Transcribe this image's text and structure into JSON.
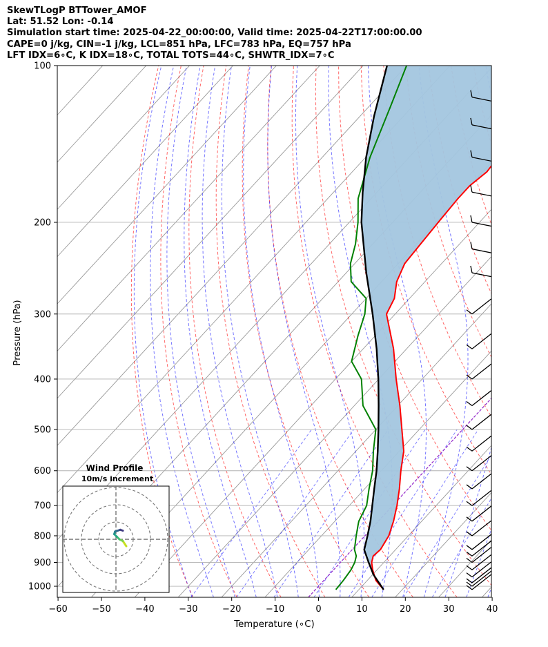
{
  "header": {
    "lines": [
      "SkewTLogP BTTower_AMOF",
      "Lat: 51.52   Lon: -0.14",
      "Simulation start time: 2025-04-22_00:00:00, Valid time: 2025-04-22T17:00:00.00",
      "CAPE=0 j/kg, CIN=-1 j/kg, LCL=851 hPa, LFC=783 hPa, EQ=757 hPa",
      "LFT IDX=6∘C, K IDX=18∘C, TOTAL TOTS=44∘C, SHWTR_IDX=7∘C"
    ]
  },
  "chart_data": {
    "type": "line",
    "subtype": "skew-t log-p",
    "title": "",
    "xlabel": "Temperature (∘C)",
    "ylabel": "Pressure (hPa)",
    "xlim": [
      -60,
      40
    ],
    "ylim": [
      1050,
      100
    ],
    "y_scale": "log",
    "x_ticks": [
      -60,
      -50,
      -40,
      -30,
      -20,
      -10,
      0,
      10,
      20,
      30,
      40
    ],
    "y_ticks": [
      100,
      200,
      300,
      400,
      500,
      600,
      700,
      800,
      900,
      1000
    ],
    "grid": true,
    "colors": {
      "temperature": "#ff0000",
      "dewpoint": "#008000",
      "parcel": "#000000",
      "shading": "#a3c6df",
      "dry_adiabats": "#ff0000",
      "moist_adiabats": "#0000ff",
      "mixing_ratio": "#0000ff",
      "isotherms": "#999999",
      "zero_isotherm": "#9933cc"
    },
    "series": [
      {
        "role": "temperature",
        "points": [
          [
            1015,
            15.7
          ],
          [
            975,
            12.0
          ],
          [
            930,
            9.0
          ],
          [
            900,
            7.2
          ],
          [
            875,
            6.2
          ],
          [
            850,
            6.5
          ],
          [
            800,
            5.5
          ],
          [
            750,
            3.5
          ],
          [
            700,
            1.0
          ],
          [
            650,
            -2.0
          ],
          [
            600,
            -5.5
          ],
          [
            550,
            -9.0
          ],
          [
            500,
            -14.0
          ],
          [
            450,
            -19.5
          ],
          [
            400,
            -26.0
          ],
          [
            350,
            -33.0
          ],
          [
            300,
            -42.0
          ],
          [
            280,
            -43.5
          ],
          [
            260,
            -46.5
          ],
          [
            240,
            -48.5
          ],
          [
            220,
            -49.0
          ],
          [
            200,
            -49.5
          ],
          [
            180,
            -50.0
          ],
          [
            170,
            -50.0
          ],
          [
            160,
            -49.0
          ],
          [
            150,
            -49.5
          ],
          [
            140,
            -50.0
          ],
          [
            130,
            -52.0
          ],
          [
            120,
            -55.0
          ],
          [
            110,
            -59.0
          ],
          [
            105,
            -61.0
          ],
          [
            100,
            -62.0
          ]
        ]
      },
      {
        "role": "dewpoint",
        "points": [
          [
            1015,
            4.7
          ],
          [
            975,
            4.5
          ],
          [
            930,
            4.0
          ],
          [
            900,
            3.3
          ],
          [
            875,
            2.3
          ],
          [
            850,
            0.5
          ],
          [
            800,
            -2.0
          ],
          [
            760,
            -4.0
          ],
          [
            750,
            -4.5
          ],
          [
            700,
            -6.0
          ],
          [
            650,
            -9.0
          ],
          [
            600,
            -12.0
          ],
          [
            550,
            -16.0
          ],
          [
            500,
            -20.0
          ],
          [
            450,
            -28.0
          ],
          [
            400,
            -34.0
          ],
          [
            370,
            -40.0
          ],
          [
            330,
            -44.0
          ],
          [
            300,
            -47.0
          ],
          [
            280,
            -50.0
          ],
          [
            260,
            -57.0
          ],
          [
            240,
            -61.0
          ],
          [
            220,
            -64.0
          ],
          [
            200,
            -68.0
          ],
          [
            180,
            -73.0
          ],
          [
            150,
            -79.0
          ],
          [
            120,
            -85.0
          ],
          [
            100,
            -90.0
          ]
        ]
      },
      {
        "role": "parcel",
        "points": [
          [
            1015,
            15.7
          ],
          [
            950,
            10.2
          ],
          [
            900,
            6.5
          ],
          [
            851,
            2.8
          ],
          [
            800,
            0.6
          ],
          [
            750,
            -1.8
          ],
          [
            700,
            -4.7
          ],
          [
            650,
            -7.8
          ],
          [
            600,
            -11.1
          ],
          [
            550,
            -15.0
          ],
          [
            500,
            -19.4
          ],
          [
            450,
            -24.4
          ],
          [
            400,
            -30.1
          ],
          [
            350,
            -36.9
          ],
          [
            300,
            -45.2
          ],
          [
            250,
            -55.4
          ],
          [
            200,
            -67.2
          ],
          [
            175,
            -73.3
          ],
          [
            150,
            -79.9
          ],
          [
            125,
            -86.8
          ],
          [
            100,
            -94.5
          ]
        ]
      }
    ],
    "wind_barbs": {
      "x_position": 36,
      "pressures": [
        1015,
        1000,
        985,
        960,
        930,
        900,
        875,
        850,
        800,
        750,
        700,
        650,
        600,
        550,
        500,
        450,
        400,
        350,
        300,
        250,
        225,
        200,
        175,
        150,
        130,
        115
      ]
    },
    "hodograph": {
      "title": "Wind Profile",
      "subtitle": "10m/s increment",
      "ring_count": 3,
      "trace": [
        [
          6,
          -4
        ],
        [
          4,
          -1
        ],
        [
          2,
          0
        ],
        [
          0.5,
          1.5
        ],
        [
          -1,
          3
        ],
        [
          -0.5,
          4.5
        ],
        [
          1,
          5
        ],
        [
          2.5,
          5.5
        ],
        [
          4,
          5
        ]
      ],
      "trace_colors": [
        "#c7e020",
        "#7ad151",
        "#3fbc73",
        "#22a884",
        "#21918c",
        "#2a788e",
        "#35608d",
        "#433e85",
        "#48186a"
      ]
    }
  }
}
